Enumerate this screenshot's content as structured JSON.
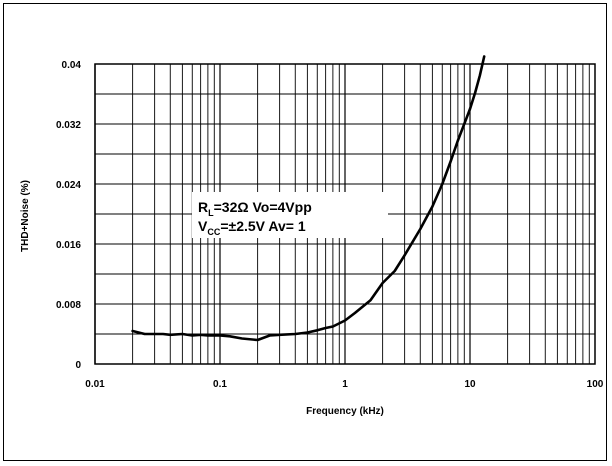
{
  "chart_data": {
    "type": "line",
    "x_scale": "log",
    "xlim": [
      0.01,
      100
    ],
    "ylim": [
      0,
      0.04
    ],
    "grid": true,
    "xlabel": "Frequency (kHz)",
    "ylabel": "THD+Noise (%)",
    "x_tick_labels": [
      "0.01",
      "0.1",
      "1",
      "10",
      "100"
    ],
    "x_tick_values": [
      0.01,
      0.1,
      1,
      10,
      100
    ],
    "y_tick_labels": [
      "0",
      "0.008",
      "0.016",
      "0.024",
      "0.032",
      "0.04"
    ],
    "y_tick_values": [
      0,
      0.008,
      0.016,
      0.024,
      0.032,
      0.04
    ],
    "y_minor_step": 0.004,
    "annotation": {
      "line1": {
        "r": "R",
        "r_sub": "L",
        "rest": "=32Ω  Vo=4Vpp"
      },
      "line2": {
        "v": "V",
        "v_sub": "CC",
        "rest": "=±2.5V  Av= 1"
      }
    },
    "series": [
      {
        "x": [
          0.02,
          0.025,
          0.03,
          0.035,
          0.04,
          0.05,
          0.06,
          0.07,
          0.08,
          0.1,
          0.12,
          0.15,
          0.2,
          0.25,
          0.3,
          0.4,
          0.5,
          0.6,
          0.7,
          0.8,
          1.0,
          1.2,
          1.6,
          2.0,
          2.5,
          3.0,
          4.0,
          5.0,
          6.0,
          7.0,
          8.0,
          10.0,
          11.0,
          12.0,
          13.0
        ],
        "y": [
          0.0044,
          0.004,
          0.004,
          0.004,
          0.0039,
          0.004,
          0.0038,
          0.0039,
          0.0038,
          0.0038,
          0.0037,
          0.0034,
          0.0032,
          0.0038,
          0.0039,
          0.004,
          0.0042,
          0.0045,
          0.0048,
          0.005,
          0.0058,
          0.0068,
          0.0085,
          0.0108,
          0.0124,
          0.0145,
          0.018,
          0.021,
          0.024,
          0.027,
          0.0298,
          0.034,
          0.0362,
          0.0385,
          0.041
        ]
      }
    ]
  }
}
